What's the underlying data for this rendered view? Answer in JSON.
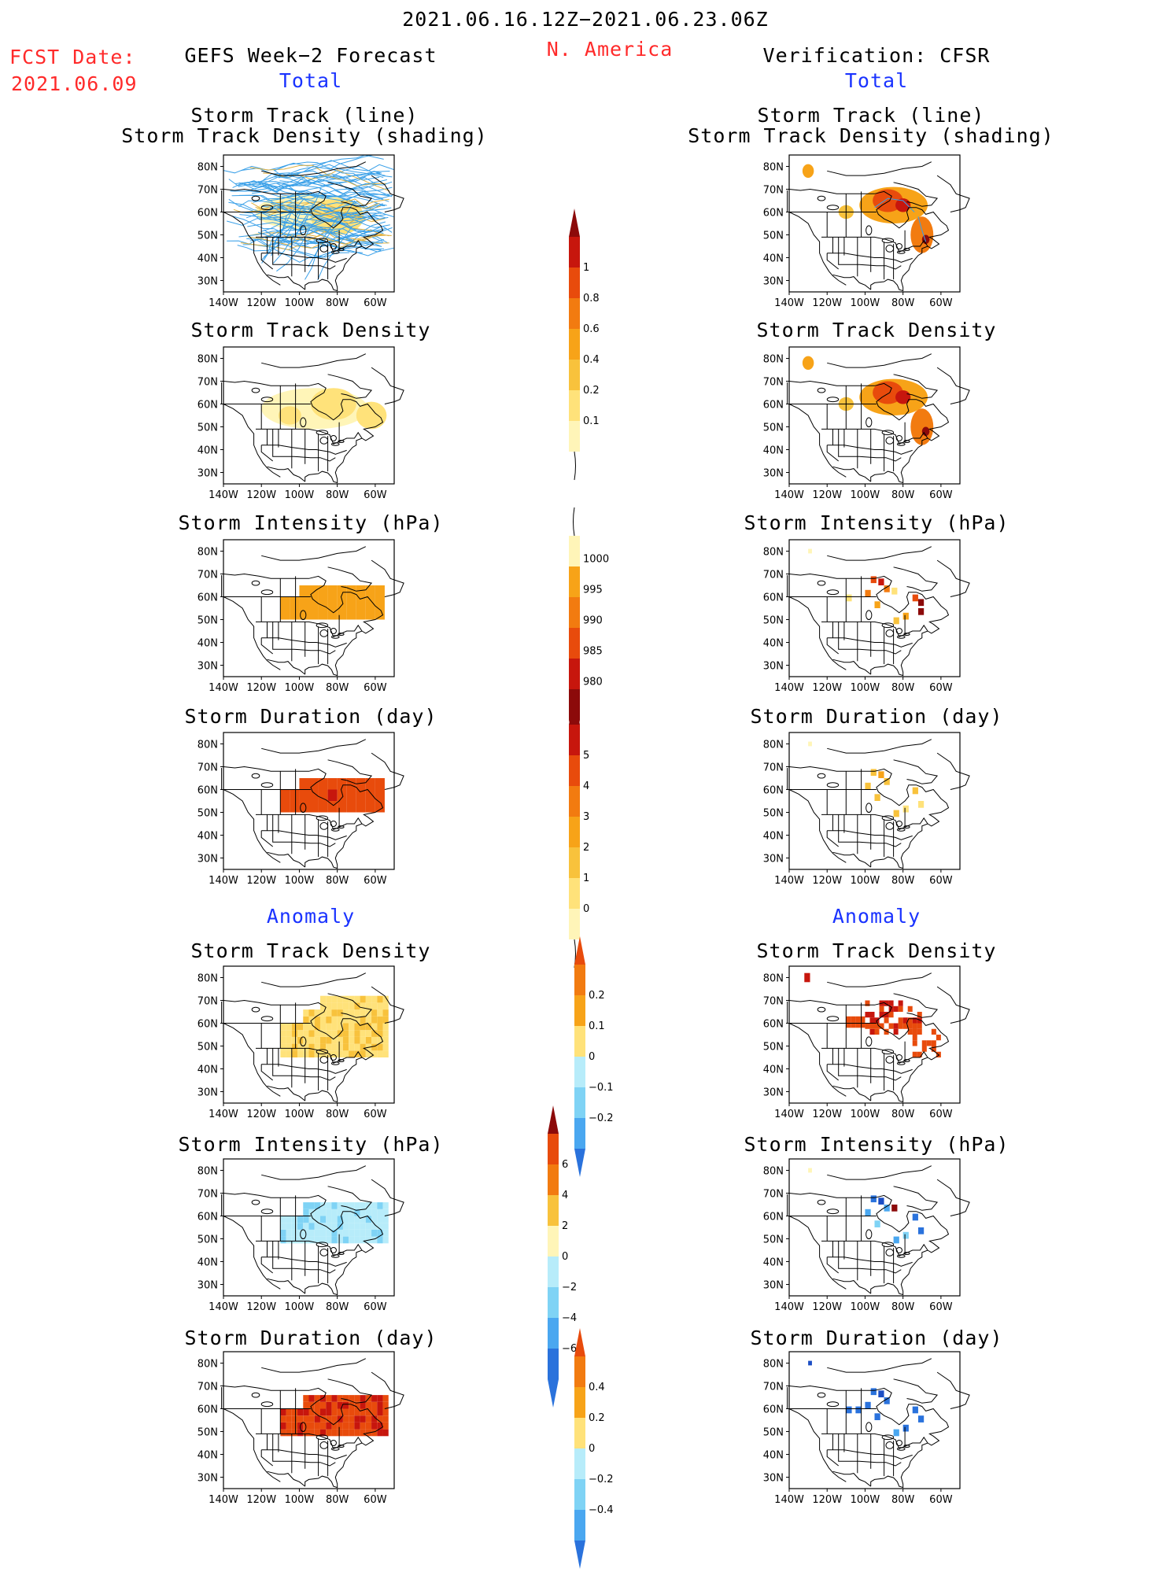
{
  "header": {
    "title": "2021.06.16.12Z−2021.06.23.06Z",
    "region": "N. America",
    "fcst_label": "FCST Date:",
    "fcst_date": "2021.06.09",
    "left_title": "GEFS Week−2 Forecast",
    "right_title": "Verification: CFSR",
    "left_total": "Total",
    "right_total": "Total",
    "left_anomaly": "Anomaly",
    "right_anomaly": "Anomaly"
  },
  "panel_titles": {
    "track_line": "Storm Track (line)",
    "track_shading": "Storm Track Density (shading)",
    "density": "Storm Track Density",
    "intensity": "Storm Intensity (hPa)",
    "duration": "Storm Duration (day)"
  },
  "axes": {
    "lat_ticks": [
      "80N",
      "70N",
      "60N",
      "50N",
      "40N",
      "30N"
    ],
    "lon_ticks": [
      "140W",
      "120W",
      "100W",
      "80W",
      "60W"
    ]
  },
  "colors": {
    "warm": [
      "#fff5b8",
      "#ffe27a",
      "#f8c23c",
      "#f7a318",
      "#f27b10",
      "#e84b0c",
      "#c7160d",
      "#8c0a0a"
    ],
    "cool": [
      "#b7ecfa",
      "#7fd3f5",
      "#4aa7f0",
      "#2a72dc",
      "#1c4ec4"
    ],
    "track_line": "#3aa0e8",
    "title_red": "#ff2a2a",
    "title_blue": "#1a33ff"
  },
  "chart_data": [
    {
      "type": "heatmap",
      "title": "Storm Track (line) / Storm Track Density (shading)",
      "source": "GEFS Week−2 Forecast",
      "section": "Total",
      "x_range": [
        "140W",
        "50W"
      ],
      "y_range": [
        "25N",
        "85N"
      ],
      "note_tracks": "many ensemble storm tracks across Canada 45N–80N"
    },
    {
      "type": "heatmap",
      "title": "Storm Track Density",
      "source": "GEFS Week−2 Forecast",
      "section": "Total",
      "scale": [
        0.1,
        0.2,
        0.4,
        0.6,
        0.8,
        1
      ],
      "cells": [
        {
          "lon": -95,
          "lat": 60,
          "value": 0.2
        },
        {
          "lon": -85,
          "lat": 60,
          "value": 0.2
        },
        {
          "lon": -75,
          "lat": 57,
          "value": 0.2
        },
        {
          "lon": -65,
          "lat": 55,
          "value": 0.2
        },
        {
          "lon": -105,
          "lat": 55,
          "value": 0.1
        },
        {
          "lon": -90,
          "lat": 65,
          "value": 0.1
        }
      ]
    },
    {
      "type": "heatmap",
      "title": "Storm Intensity (hPa)",
      "source": "GEFS Week−2 Forecast",
      "section": "Total",
      "scale": [
        980,
        985,
        990,
        995,
        1000
      ],
      "region_value": 995,
      "region": {
        "lon": [
          -110,
          -55
        ],
        "lat": [
          50,
          65
        ]
      }
    },
    {
      "type": "heatmap",
      "title": "Storm Duration (day)",
      "source": "GEFS Week−2 Forecast",
      "section": "Total",
      "scale": [
        0,
        1,
        2,
        3,
        4,
        5
      ],
      "region_value": 3.5,
      "region": {
        "lon": [
          -110,
          -55
        ],
        "lat": [
          50,
          65
        ]
      }
    },
    {
      "type": "heatmap",
      "title": "Storm Track Density",
      "source": "GEFS Week−2 Forecast",
      "section": "Anomaly",
      "scale": [
        -0.2,
        -0.1,
        0,
        0.1,
        0.2
      ],
      "region_value": 0.05
    },
    {
      "type": "heatmap",
      "title": "Storm Intensity (hPa)",
      "source": "GEFS Week−2 Forecast",
      "section": "Anomaly",
      "scale": [
        -6,
        -4,
        -2,
        0,
        2,
        4,
        6
      ],
      "region_value": -1
    },
    {
      "type": "heatmap",
      "title": "Storm Duration (day)",
      "source": "GEFS Week−2 Forecast",
      "section": "Anomaly",
      "scale": [
        -0.4,
        -0.2,
        0,
        0.2,
        0.4
      ],
      "region_value": 0.3
    },
    {
      "type": "heatmap",
      "title": "Storm Track (line) / Storm Track Density (shading)",
      "source": "Verification: CFSR",
      "section": "Total",
      "note": "few observed tracks; density peaks near Hudson Bay and Quebec"
    },
    {
      "type": "heatmap",
      "title": "Storm Track Density",
      "source": "Verification: CFSR",
      "section": "Total",
      "scale": [
        0.1,
        0.2,
        0.4,
        0.6,
        0.8,
        1
      ]
    },
    {
      "type": "heatmap",
      "title": "Storm Intensity (hPa)",
      "source": "Verification: CFSR",
      "section": "Total",
      "scale": [
        980,
        985,
        990,
        995,
        1000
      ]
    },
    {
      "type": "heatmap",
      "title": "Storm Duration (day)",
      "source": "Verification: CFSR",
      "section": "Total",
      "scale": [
        0,
        1,
        2,
        3,
        4,
        5
      ]
    },
    {
      "type": "heatmap",
      "title": "Storm Track Density",
      "source": "Verification: CFSR",
      "section": "Anomaly",
      "scale": [
        -0.2,
        -0.1,
        0,
        0.1,
        0.2
      ]
    },
    {
      "type": "heatmap",
      "title": "Storm Intensity (hPa)",
      "source": "Verification: CFSR",
      "section": "Anomaly",
      "scale": [
        -6,
        -4,
        -2,
        0,
        2,
        4,
        6
      ]
    },
    {
      "type": "heatmap",
      "title": "Storm Duration (day)",
      "source": "Verification: CFSR",
      "section": "Anomaly",
      "scale": [
        -0.4,
        -0.2,
        0,
        0.2,
        0.4
      ]
    }
  ],
  "colorbars": {
    "density_total": [
      "1",
      "0.8",
      "0.6",
      "0.4",
      "0.2",
      "0.1"
    ],
    "intensity_total": [
      "1000",
      "995",
      "990",
      "985",
      "980"
    ],
    "duration_total": [
      "5",
      "4",
      "3",
      "2",
      "1",
      "0"
    ],
    "density_anom": [
      "0.2",
      "0.1",
      "0",
      "−0.1",
      "−0.2"
    ],
    "intensity_anom": [
      "6",
      "4",
      "2",
      "0",
      "−2",
      "−4",
      "−6"
    ],
    "duration_anom": [
      "0.4",
      "0.2",
      "0",
      "−0.2",
      "−0.4"
    ]
  }
}
